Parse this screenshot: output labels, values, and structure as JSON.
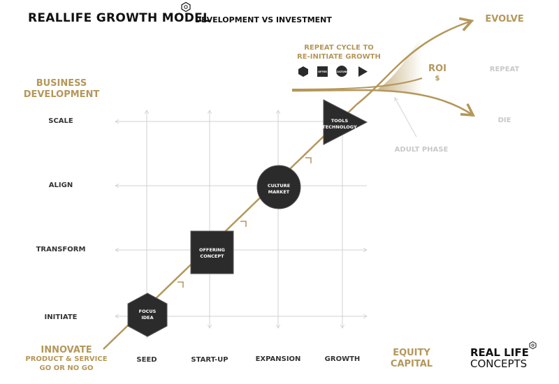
{
  "header": {
    "title": "REALLIFE GROWTH MODEL",
    "subtitle": "DEVELOPMENT VS INVESTMENT"
  },
  "axes": {
    "y_label_line1": "BUSINESS",
    "y_label_line2": "DEVELOPMENT",
    "x_label_line1": "EQUITY",
    "x_label_line2": "CAPITAL"
  },
  "rows": [
    "SCALE",
    "ALIGN",
    "TRANSFORM",
    "INITIATE"
  ],
  "columns": [
    "SEED",
    "START-UP",
    "EXPANSION",
    "GROWTH"
  ],
  "origin": {
    "line1": "INNOVATE",
    "line2": "PRODUCT & SERVICE",
    "line3": "GO OR NO GO"
  },
  "stages": [
    {
      "shape": "hexagon",
      "line1": "FOCUS",
      "line2": "IDEA"
    },
    {
      "shape": "square",
      "line1": "OFFERING",
      "line2": "CONCEPT"
    },
    {
      "shape": "circle",
      "line1": "CULTURE",
      "line2": "MARKET"
    },
    {
      "shape": "triangle",
      "line1": "TOOLS",
      "line2": "TECHNOLOGY"
    }
  ],
  "cycle": {
    "line1": "REPEAT CYCLE TO",
    "line2": "RE-INITIATE GROWTH",
    "mini_square_text": "OFFER",
    "mini_circle_text": "CULTURE"
  },
  "outcomes": {
    "evolve": "EVOLVE",
    "repeat": "REPEAT",
    "die": "DIE",
    "roi": "ROI",
    "roi_symbol": "$",
    "adult_phase": "ADULT PHASE"
  },
  "brand": {
    "line1": "REAL LIFE",
    "line2": "CONCEPTS"
  },
  "colors": {
    "gold": "#b4975a",
    "dark_shape": "#2b2b2b",
    "grid_line": "#d2d2d2",
    "faded_text": "#c8c8c8"
  }
}
